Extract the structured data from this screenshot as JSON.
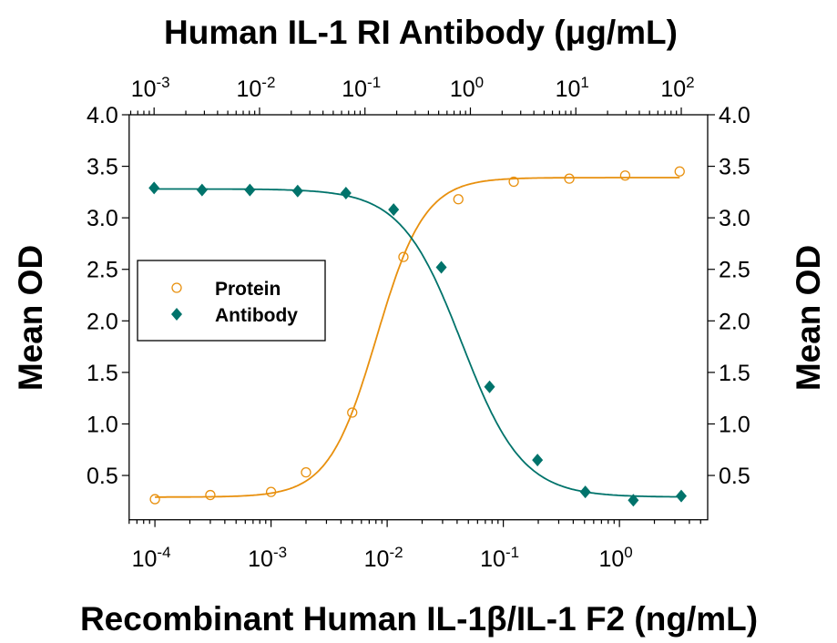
{
  "chart_data": {
    "type": "scatter",
    "title": "",
    "top_axis": {
      "label": "Human IL-1 RI Antibody (μg/mL)",
      "scale": "log",
      "range": [
        0.00058,
        178
      ],
      "ticks": [
        {
          "base": "10",
          "exp": "-3",
          "value": 0.001
        },
        {
          "base": "10",
          "exp": "-2",
          "value": 0.01
        },
        {
          "base": "10",
          "exp": "-1",
          "value": 0.1
        },
        {
          "base": "10",
          "exp": "0",
          "value": 1
        },
        {
          "base": "10",
          "exp": "1",
          "value": 10
        },
        {
          "base": "10",
          "exp": "2",
          "value": 100
        }
      ]
    },
    "bottom_axis": {
      "label": "Recombinant Human IL-1β/IL-1 F2 (ng/mL)",
      "scale": "log",
      "range": [
        6e-05,
        5.75
      ],
      "ticks": [
        {
          "base": "10",
          "exp": "-4",
          "value": 0.0001
        },
        {
          "base": "10",
          "exp": "-3",
          "value": 0.001
        },
        {
          "base": "10",
          "exp": "-2",
          "value": 0.01
        },
        {
          "base": "10",
          "exp": "-1",
          "value": 0.1
        },
        {
          "base": "10",
          "exp": "0",
          "value": 1
        }
      ]
    },
    "y_axis": {
      "label": "Mean OD",
      "right_label": "Mean OD",
      "range": [
        0.07,
        4.0
      ],
      "ticks": [
        "0.5",
        "1.0",
        "1.5",
        "2.0",
        "2.5",
        "3.0",
        "3.5",
        "4.0"
      ]
    },
    "grid": false,
    "legend": {
      "placement": "center-left",
      "entries": [
        "Protein",
        "Antibody"
      ]
    },
    "series": [
      {
        "name": "Protein",
        "axis": "bottom",
        "marker": "open-circle",
        "color": "#E8900E",
        "x": [
          0.0001,
          0.0003,
          0.001,
          0.002,
          0.005,
          0.0138,
          0.041,
          0.123,
          0.37,
          1.12,
          3.3
        ],
        "y": [
          0.27,
          0.31,
          0.34,
          0.53,
          1.11,
          2.62,
          3.18,
          3.35,
          3.38,
          3.41,
          3.45
        ],
        "fit": {
          "model": "4PL",
          "bottom": 0.29,
          "top": 3.39,
          "ec50": 0.0081,
          "hill": 2.1
        }
      },
      {
        "name": "Antibody",
        "axis": "top",
        "marker": "filled-diamond",
        "color": "#00736B",
        "x": [
          0.001,
          0.00285,
          0.0081,
          0.023,
          0.066,
          0.187,
          0.53,
          1.52,
          4.33,
          12.3,
          35.1,
          100
        ],
        "y": [
          3.29,
          3.27,
          3.27,
          3.26,
          3.24,
          3.08,
          2.52,
          1.36,
          0.65,
          0.34,
          0.26,
          0.3
        ],
        "fit": {
          "model": "4PL-decreasing",
          "bottom": 0.29,
          "top": 3.28,
          "ic50": 0.83,
          "hill": 1.51
        }
      }
    ]
  }
}
